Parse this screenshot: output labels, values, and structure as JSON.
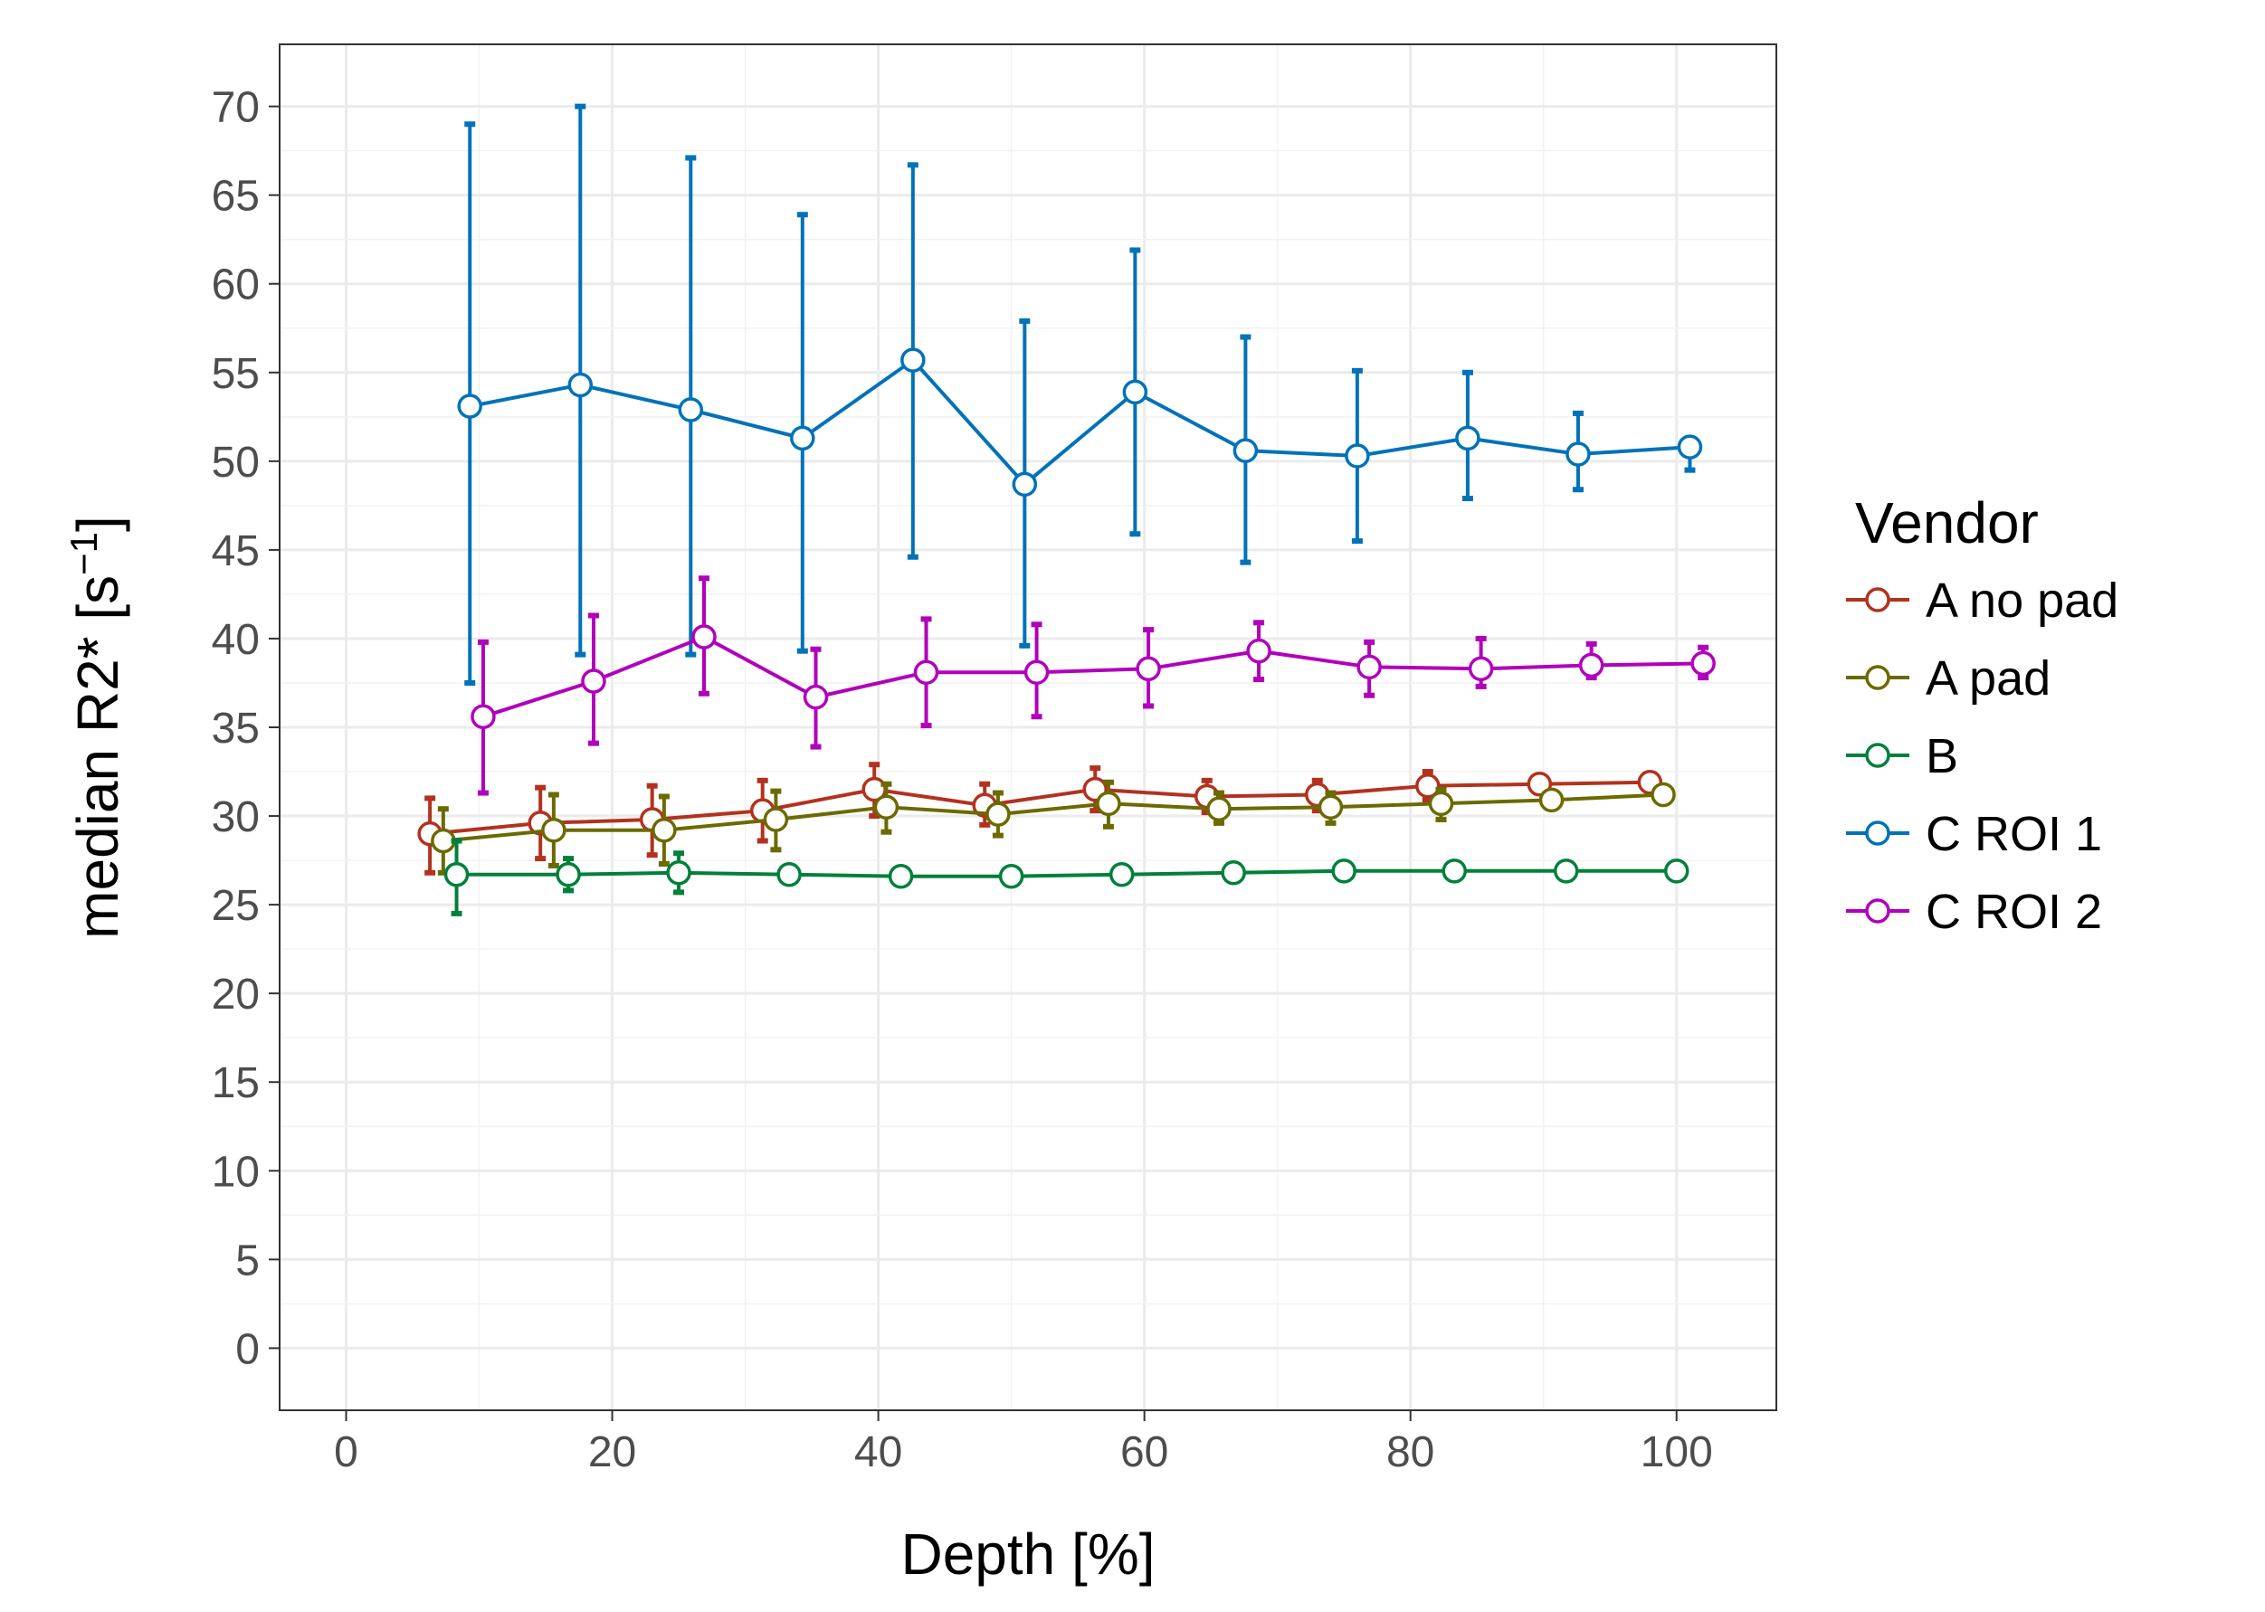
{
  "chart_data": {
    "type": "line",
    "title": "",
    "xlabel": "Depth [%]",
    "ylabel_main": "median R2* [s",
    "ylabel_sup": "−1",
    "ylabel_close": "]",
    "xlim": [
      -5,
      107.5
    ],
    "ylim": [
      -3.5,
      73.5
    ],
    "x_ticks": [
      0,
      20,
      40,
      60,
      80,
      100
    ],
    "x_tick_labels": [
      "0",
      "20",
      "40",
      "60",
      "80",
      "100"
    ],
    "y_ticks": [
      0,
      5,
      10,
      15,
      20,
      25,
      30,
      35,
      40,
      45,
      50,
      55,
      60,
      65,
      70
    ],
    "y_tick_labels": [
      "0",
      "5",
      "10",
      "15",
      "20",
      "25",
      "30",
      "35",
      "40",
      "45",
      "50",
      "55",
      "60",
      "65",
      "70"
    ],
    "grid": true,
    "legend": {
      "title": "Vendor",
      "position": "right"
    },
    "series": [
      {
        "name": "A no pad",
        "color": "#b2321e",
        "points": [
          {
            "x": 6.3,
            "y": 29.0,
            "lo": 26.8,
            "hi": 31.0
          },
          {
            "x": 14.6,
            "y": 29.6,
            "lo": 27.6,
            "hi": 31.6
          },
          {
            "x": 23.0,
            "y": 29.8,
            "lo": 27.8,
            "hi": 31.7
          },
          {
            "x": 31.3,
            "y": 30.3,
            "lo": 28.6,
            "hi": 32.0
          },
          {
            "x": 39.7,
            "y": 31.5,
            "lo": 30.0,
            "hi": 32.9
          },
          {
            "x": 48.0,
            "y": 30.6,
            "lo": 29.5,
            "hi": 31.8
          },
          {
            "x": 56.3,
            "y": 31.5,
            "lo": 30.3,
            "hi": 32.7
          },
          {
            "x": 64.7,
            "y": 31.1,
            "lo": 30.2,
            "hi": 32.0
          },
          {
            "x": 73.0,
            "y": 31.2,
            "lo": 30.3,
            "hi": 32.0
          },
          {
            "x": 81.3,
            "y": 31.7,
            "lo": 30.9,
            "hi": 32.5
          },
          {
            "x": 89.7,
            "y": 31.8,
            "lo": 31.3,
            "hi": 32.2
          },
          {
            "x": 98.0,
            "y": 31.9,
            "lo": 31.5,
            "hi": 32.3
          }
        ]
      },
      {
        "name": "A pad",
        "color": "#6b6a00",
        "points": [
          {
            "x": 7.3,
            "y": 28.6,
            "lo": 26.8,
            "hi": 30.4
          },
          {
            "x": 15.6,
            "y": 29.2,
            "lo": 27.2,
            "hi": 31.2
          },
          {
            "x": 23.9,
            "y": 29.2,
            "lo": 27.3,
            "hi": 31.1
          },
          {
            "x": 32.3,
            "y": 29.8,
            "lo": 28.1,
            "hi": 31.4
          },
          {
            "x": 40.6,
            "y": 30.5,
            "lo": 29.1,
            "hi": 31.8
          },
          {
            "x": 49.0,
            "y": 30.1,
            "lo": 28.9,
            "hi": 31.3
          },
          {
            "x": 57.3,
            "y": 30.7,
            "lo": 29.4,
            "hi": 31.9
          },
          {
            "x": 65.6,
            "y": 30.4,
            "lo": 29.6,
            "hi": 31.3
          },
          {
            "x": 74.0,
            "y": 30.5,
            "lo": 29.6,
            "hi": 31.3
          },
          {
            "x": 82.3,
            "y": 30.7,
            "lo": 29.8,
            "hi": 31.5
          },
          {
            "x": 90.6,
            "y": 30.9,
            "lo": 30.6,
            "hi": 31.2
          },
          {
            "x": 99.0,
            "y": 31.2,
            "lo": 30.8,
            "hi": 31.6
          }
        ]
      },
      {
        "name": "B",
        "color": "#00803a",
        "points": [
          {
            "x": 8.3,
            "y": 26.7,
            "lo": 24.5,
            "hi": 28.6
          },
          {
            "x": 16.7,
            "y": 26.7,
            "lo": 25.8,
            "hi": 27.6
          },
          {
            "x": 25.0,
            "y": 26.8,
            "lo": 25.7,
            "hi": 27.9
          },
          {
            "x": 33.3,
            "y": 26.7,
            "lo": 26.4,
            "hi": 27.0
          },
          {
            "x": 41.7,
            "y": 26.6,
            "lo": 26.3,
            "hi": 26.9
          },
          {
            "x": 50.0,
            "y": 26.6,
            "lo": 26.4,
            "hi": 26.8
          },
          {
            "x": 58.3,
            "y": 26.7,
            "lo": 26.5,
            "hi": 26.9
          },
          {
            "x": 66.7,
            "y": 26.8,
            "lo": 26.6,
            "hi": 27.0
          },
          {
            "x": 75.0,
            "y": 26.9,
            "lo": 26.7,
            "hi": 27.1
          },
          {
            "x": 83.3,
            "y": 26.9,
            "lo": 26.7,
            "hi": 27.1
          },
          {
            "x": 91.7,
            "y": 26.9,
            "lo": 26.7,
            "hi": 27.1
          },
          {
            "x": 100.0,
            "y": 26.9,
            "lo": 26.7,
            "hi": 27.1
          }
        ]
      },
      {
        "name": "C ROI 1",
        "color": "#0072b9",
        "points": [
          {
            "x": 9.3,
            "y": 53.1,
            "lo": 37.5,
            "hi": 69.0
          },
          {
            "x": 17.6,
            "y": 54.3,
            "lo": 39.1,
            "hi": 70.0
          },
          {
            "x": 25.9,
            "y": 52.9,
            "lo": 39.1,
            "hi": 67.1
          },
          {
            "x": 34.3,
            "y": 51.3,
            "lo": 39.3,
            "hi": 63.9
          },
          {
            "x": 42.6,
            "y": 55.7,
            "lo": 44.6,
            "hi": 66.7
          },
          {
            "x": 51.0,
            "y": 48.7,
            "lo": 39.6,
            "hi": 57.9
          },
          {
            "x": 59.3,
            "y": 53.9,
            "lo": 45.9,
            "hi": 61.9
          },
          {
            "x": 67.6,
            "y": 50.6,
            "lo": 44.3,
            "hi": 57.0
          },
          {
            "x": 76.0,
            "y": 50.3,
            "lo": 45.5,
            "hi": 55.1
          },
          {
            "x": 84.3,
            "y": 51.3,
            "lo": 47.9,
            "hi": 55.0
          },
          {
            "x": 92.6,
            "y": 50.4,
            "lo": 48.4,
            "hi": 52.7
          },
          {
            "x": 101.0,
            "y": 50.8,
            "lo": 49.5,
            "hi": 51.2
          }
        ]
      },
      {
        "name": "C ROI 2",
        "color": "#b100bc",
        "points": [
          {
            "x": 10.3,
            "y": 35.6,
            "lo": 31.3,
            "hi": 39.8
          },
          {
            "x": 18.6,
            "y": 37.6,
            "lo": 34.1,
            "hi": 41.3
          },
          {
            "x": 26.9,
            "y": 40.1,
            "lo": 36.9,
            "hi": 43.4
          },
          {
            "x": 35.3,
            "y": 36.7,
            "lo": 33.9,
            "hi": 39.4
          },
          {
            "x": 43.6,
            "y": 38.1,
            "lo": 35.1,
            "hi": 41.1
          },
          {
            "x": 51.9,
            "y": 38.1,
            "lo": 35.6,
            "hi": 40.8
          },
          {
            "x": 60.3,
            "y": 38.3,
            "lo": 36.2,
            "hi": 40.5
          },
          {
            "x": 68.6,
            "y": 39.3,
            "lo": 37.7,
            "hi": 40.9
          },
          {
            "x": 76.9,
            "y": 38.4,
            "lo": 36.8,
            "hi": 39.8
          },
          {
            "x": 85.3,
            "y": 38.3,
            "lo": 37.3,
            "hi": 40.0
          },
          {
            "x": 93.6,
            "y": 38.5,
            "lo": 37.8,
            "hi": 39.7
          },
          {
            "x": 102.0,
            "y": 38.6,
            "lo": 37.8,
            "hi": 39.5
          }
        ]
      }
    ]
  }
}
